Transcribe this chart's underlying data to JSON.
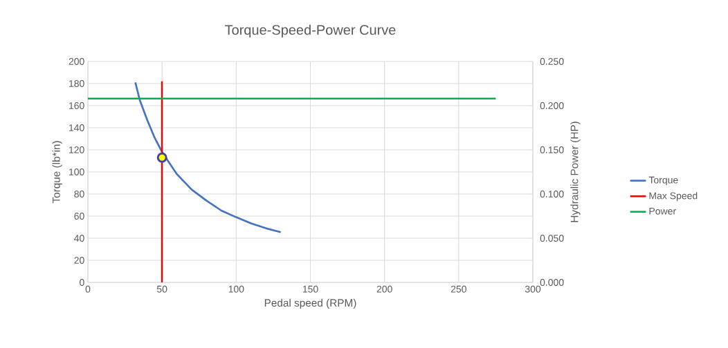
{
  "chart_data": {
    "type": "line",
    "title": "Torque-Speed-Power  Curve",
    "xlabel": "Pedal speed (RPM)",
    "ylabel": "Torque (lb*in)",
    "y2label": "Hydraulic Power (HP)",
    "xlim": [
      0,
      300
    ],
    "xticks": [
      0,
      50,
      100,
      150,
      200,
      250,
      300
    ],
    "ylim": [
      0,
      200
    ],
    "yticks": [
      0,
      20,
      40,
      60,
      80,
      100,
      120,
      140,
      160,
      180,
      200
    ],
    "y2lim": [
      0,
      0.25
    ],
    "y2ticks": [
      {
        "value": 0,
        "label": "0.000"
      },
      {
        "value": 0.05,
        "label": "0.050"
      },
      {
        "value": 0.1,
        "label": "0.100"
      },
      {
        "value": 0.15,
        "label": "0.150"
      },
      {
        "value": 0.2,
        "label": "0.200"
      },
      {
        "value": 0.25,
        "label": "0.250"
      }
    ],
    "grid": true,
    "legend": "right",
    "series": [
      {
        "name": "Torque",
        "color": "#4472c4",
        "x": [
          32,
          35,
          40,
          45,
          50,
          60,
          70,
          80,
          90,
          100,
          110,
          120,
          130
        ],
        "values": [
          181,
          165,
          147,
          131,
          118,
          98,
          84,
          74,
          65,
          59,
          53.5,
          49,
          45.5
        ]
      },
      {
        "name": "Max Speed",
        "color": "#ff0000",
        "x": [
          50,
          50
        ],
        "values": [
          0,
          182
        ]
      },
      {
        "name": "Power",
        "color": "#00b050",
        "axis": "y2",
        "x": [
          0,
          275
        ],
        "values": [
          0.208,
          0.208
        ]
      },
      {
        "type": "scatter",
        "color": "#ffff00",
        "marker": "circle",
        "x": [
          50
        ],
        "values": [
          113
        ]
      }
    ]
  }
}
